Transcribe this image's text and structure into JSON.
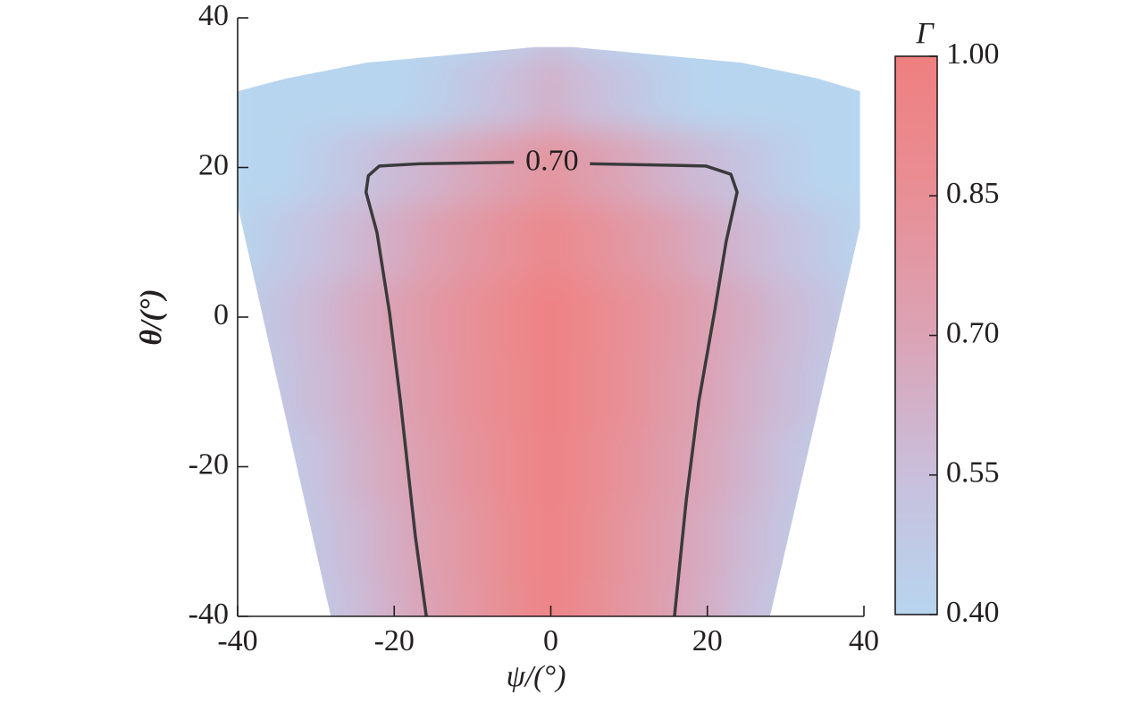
{
  "chart_data": {
    "type": "heatmap",
    "xlabel": "ψ/(°)",
    "ylabel": "θ/(°)",
    "colorbar_title": "Γ",
    "xlim": [
      -40,
      40
    ],
    "ylim": [
      -40,
      40
    ],
    "xticks": [
      -40,
      -20,
      0,
      20,
      40
    ],
    "yticks": [
      -40,
      -20,
      0,
      20,
      40
    ],
    "zlim": [
      0.4,
      1
    ],
    "zticks": [
      {
        "value": 0.4,
        "label": "0.40"
      },
      0.55,
      {
        "value": 0.7,
        "label": "0.70"
      },
      0.85,
      {
        "value": 1,
        "label": "1.00"
      }
    ],
    "colorscale": [
      "#b7d5ef",
      "#c9bfdc",
      "#dba3b5",
      "#e88f96",
      "#ef7f7f"
    ],
    "x": [
      -40,
      -35,
      -30,
      -25,
      -20,
      -15,
      -10,
      -5,
      0,
      5,
      10,
      15,
      20,
      25,
      30,
      35,
      40
    ],
    "y": [
      40,
      30,
      20,
      10,
      0,
      -10,
      -20,
      -30,
      -40
    ],
    "values": [
      [
        0.4,
        0.4,
        0.4,
        0.4,
        0.4,
        0.4,
        0.4,
        0.44,
        0.5,
        0.44,
        0.4,
        0.4,
        0.4,
        0.4,
        0.4,
        0.4,
        0.4
      ],
      [
        0.4,
        0.4,
        0.4,
        0.4,
        0.4,
        0.44,
        0.5,
        0.56,
        0.62,
        0.56,
        0.5,
        0.44,
        0.4,
        0.4,
        0.4,
        0.4,
        0.4
      ],
      [
        0.4,
        0.4,
        0.45,
        0.51,
        0.57,
        0.62,
        0.68,
        0.74,
        0.8,
        0.74,
        0.68,
        0.62,
        0.57,
        0.51,
        0.45,
        0.4,
        0.4
      ],
      [
        0.41,
        0.47,
        0.53,
        0.59,
        0.65,
        0.72,
        0.78,
        0.84,
        0.9,
        0.84,
        0.78,
        0.72,
        0.65,
        0.59,
        0.53,
        0.47,
        0.41
      ],
      [
        0.45,
        0.52,
        0.58,
        0.65,
        0.71,
        0.78,
        0.84,
        0.91,
        0.97,
        0.91,
        0.84,
        0.78,
        0.71,
        0.65,
        0.58,
        0.52,
        0.45
      ],
      [
        0.43,
        0.5,
        0.57,
        0.63,
        0.7,
        0.77,
        0.84,
        0.9,
        0.97,
        0.9,
        0.84,
        0.77,
        0.7,
        0.63,
        0.57,
        0.5,
        0.43
      ],
      [
        0.4,
        0.46,
        0.53,
        0.61,
        0.68,
        0.75,
        0.82,
        0.89,
        0.96,
        0.89,
        0.82,
        0.75,
        0.68,
        0.61,
        0.53,
        0.46,
        0.4
      ],
      [
        0.4,
        0.43,
        0.51,
        0.58,
        0.65,
        0.73,
        0.8,
        0.88,
        0.95,
        0.88,
        0.8,
        0.73,
        0.65,
        0.58,
        0.51,
        0.43,
        0.4
      ],
      [
        0.4,
        0.41,
        0.48,
        0.56,
        0.64,
        0.72,
        0.79,
        0.87,
        0.95,
        0.87,
        0.79,
        0.72,
        0.64,
        0.56,
        0.48,
        0.41,
        0.4
      ]
    ],
    "mask": {
      "x": [
        -40,
        -33.8,
        -23.6,
        -1.9,
        2.7,
        24.4,
        34.1,
        39.5,
        39.5,
        28.0,
        -28.1,
        -40
      ],
      "y": [
        30.2,
        31.9,
        34,
        36.1,
        36.1,
        34,
        31.9,
        30.2,
        12,
        -40,
        -40,
        14.9
      ]
    },
    "contours": [
      {
        "level": 0.7,
        "label": "0.70",
        "x": [
          -15.9,
          -17.3,
          -19.2,
          -20.6,
          -22.2,
          -23.6,
          -23.3,
          -21.9,
          -16.7,
          -4.7,
          null,
          5.0,
          19.8,
          23.0,
          23.8,
          22.4,
          20.9,
          18.9,
          17.3,
          15.8
        ],
        "y": [
          -40,
          -29.3,
          -11.3,
          0.6,
          11.3,
          16.7,
          18.9,
          20.2,
          20.5,
          20.7,
          null,
          20.5,
          20.2,
          19.1,
          16.7,
          10.1,
          0.6,
          -11.3,
          -24.5,
          -40
        ]
      }
    ]
  }
}
